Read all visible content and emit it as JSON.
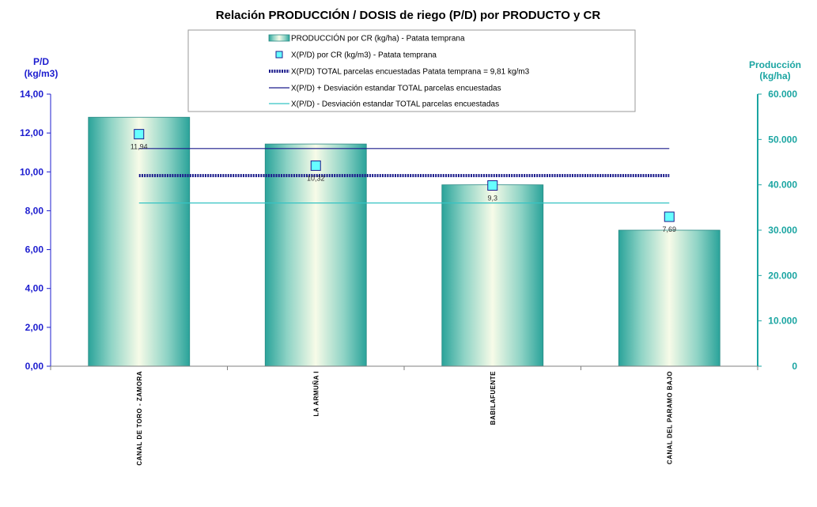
{
  "chart_data": {
    "type": "bar",
    "title": "Relación PRODUCCIÓN / DOSIS de riego (P/D) por PRODUCTO y CR",
    "categories": [
      "CANAL DE TORO - ZAMORA",
      "LA ARMUÑA I",
      "BABILAFUENTE",
      "CANAL DEL PARAMO BAJO"
    ],
    "series": [
      {
        "name": "PRODUCCIÓN por CR (kg/ha) - Patata temprana",
        "axis": "right",
        "kind": "bar",
        "values": [
          54900,
          49000,
          40000,
          30000
        ]
      },
      {
        "name": "X(P/D) por CR (kg/m3) - Patata temprana",
        "axis": "left",
        "kind": "marker",
        "values": [
          11.94,
          10.32,
          9.3,
          7.69
        ],
        "labels": [
          "11,94",
          "10,32",
          "9,3",
          "7,69"
        ]
      }
    ],
    "reference_lines": [
      {
        "name": "X(P/D) TOTAL parcelas encuestadas Patata temprana = 9,81 kg/m3",
        "value": 9.81,
        "color": "#1c1c8c",
        "style": "thick-dotted"
      },
      {
        "name": "X(P/D) + Desviación estandar TOTAL parcelas encuestadas",
        "value": 11.2,
        "color": "#1c1c8c",
        "style": "solid"
      },
      {
        "name": "X(P/D) - Desviación estandar TOTAL parcelas encuestadas",
        "value": 8.4,
        "color": "#35c4c4",
        "style": "solid"
      }
    ],
    "ylabel": "P/D (kg/m3)",
    "ylabel_lines": [
      "P/D",
      "(kg/m3)"
    ],
    "y2label_lines": [
      "Producción",
      "(kg/ha)"
    ],
    "ylim": [
      0,
      14
    ],
    "y2lim": [
      0,
      60000
    ],
    "yticks": [
      "0,00",
      "2,00",
      "4,00",
      "6,00",
      "8,00",
      "10,00",
      "12,00",
      "14,00"
    ],
    "y2ticks": [
      "0",
      "10.000",
      "20.000",
      "30.000",
      "40.000",
      "50.000",
      "60.000"
    ],
    "legend_position": "top-center",
    "grid": false,
    "colors": {
      "bar": "#2aa39a",
      "marker_fill": "#66ffff",
      "marker_stroke": "#1c1c8c",
      "left_axis": "#1c1ccf",
      "right_axis": "#1ba5a2"
    }
  }
}
